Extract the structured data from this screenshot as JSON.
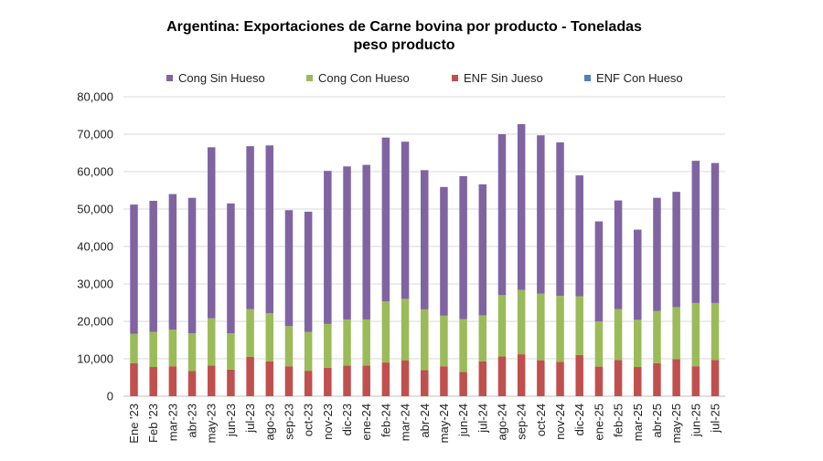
{
  "chart_data": {
    "type": "bar",
    "stacked": true,
    "title_line1": "Argentina: Exportaciones de Carne bovina por producto - Toneladas",
    "title_line2": "peso producto",
    "ylim": [
      0,
      80000
    ],
    "yticks": [
      "0",
      "10,000",
      "20,000",
      "30,000",
      "40,000",
      "50,000",
      "60,000",
      "70,000",
      "80,000"
    ],
    "grid": true,
    "legend_position": "top",
    "categories": [
      "Ene '23",
      "Feb '23",
      "mar-23",
      "abr-23",
      "may-23",
      "jun-23",
      "jul-23",
      "ago-23",
      "sep-23",
      "oct-23",
      "nov-23",
      "dic-23",
      "ene-24",
      "feb-24",
      "mar-24",
      "abr-24",
      "may-24",
      "jun-24",
      "jul-24",
      "ago-24",
      "sep-24",
      "oct-24",
      "nov-24",
      "dic-24",
      "ene-25",
      "feb-25",
      "mar-25",
      "abr-25",
      "may-25",
      "jun-25",
      "jul-25"
    ],
    "series": [
      {
        "name": "ENF Con Hueso",
        "color": "#4f81bd",
        "values": [
          0,
          0,
          0,
          0,
          0,
          0,
          0,
          0,
          0,
          0,
          0,
          0,
          0,
          0,
          0,
          0,
          0,
          0,
          0,
          0,
          0,
          0,
          0,
          0,
          0,
          0,
          0,
          0,
          0,
          0,
          0
        ]
      },
      {
        "name": "ENF Sin Jueso",
        "color": "#c0504d",
        "values": [
          8800,
          7800,
          8000,
          6700,
          8200,
          7100,
          10500,
          9300,
          8000,
          6800,
          7600,
          8200,
          8200,
          9000,
          9600,
          7000,
          8000,
          6500,
          9300,
          10600,
          11200,
          9600,
          9200,
          11000,
          7900,
          9700,
          7800,
          8800,
          9900,
          8000,
          9700
        ]
      },
      {
        "name": "Cong Con Hueso",
        "color": "#9bbb59",
        "values": [
          7900,
          9400,
          9800,
          10100,
          12600,
          9700,
          12800,
          12900,
          10700,
          10400,
          11700,
          12300,
          12300,
          16300,
          16400,
          16200,
          13500,
          14100,
          12300,
          16400,
          17200,
          17800,
          17600,
          15700,
          12100,
          13600,
          12600,
          14000,
          13900,
          16900,
          15200
        ]
      },
      {
        "name": "Cong Sin Hueso",
        "color": "#8064a2",
        "values": [
          34500,
          35000,
          36200,
          36200,
          45700,
          34700,
          43500,
          44800,
          31000,
          32100,
          40900,
          40900,
          41300,
          43800,
          42000,
          37200,
          34400,
          38200,
          35000,
          43000,
          44300,
          42300,
          41000,
          32300,
          26700,
          29000,
          24100,
          30200,
          30800,
          38000,
          37400
        ]
      }
    ],
    "legend_order": [
      "Cong Sin Hueso",
      "Cong Con Hueso",
      "ENF Sin Jueso",
      "ENF Con Hueso"
    ]
  }
}
